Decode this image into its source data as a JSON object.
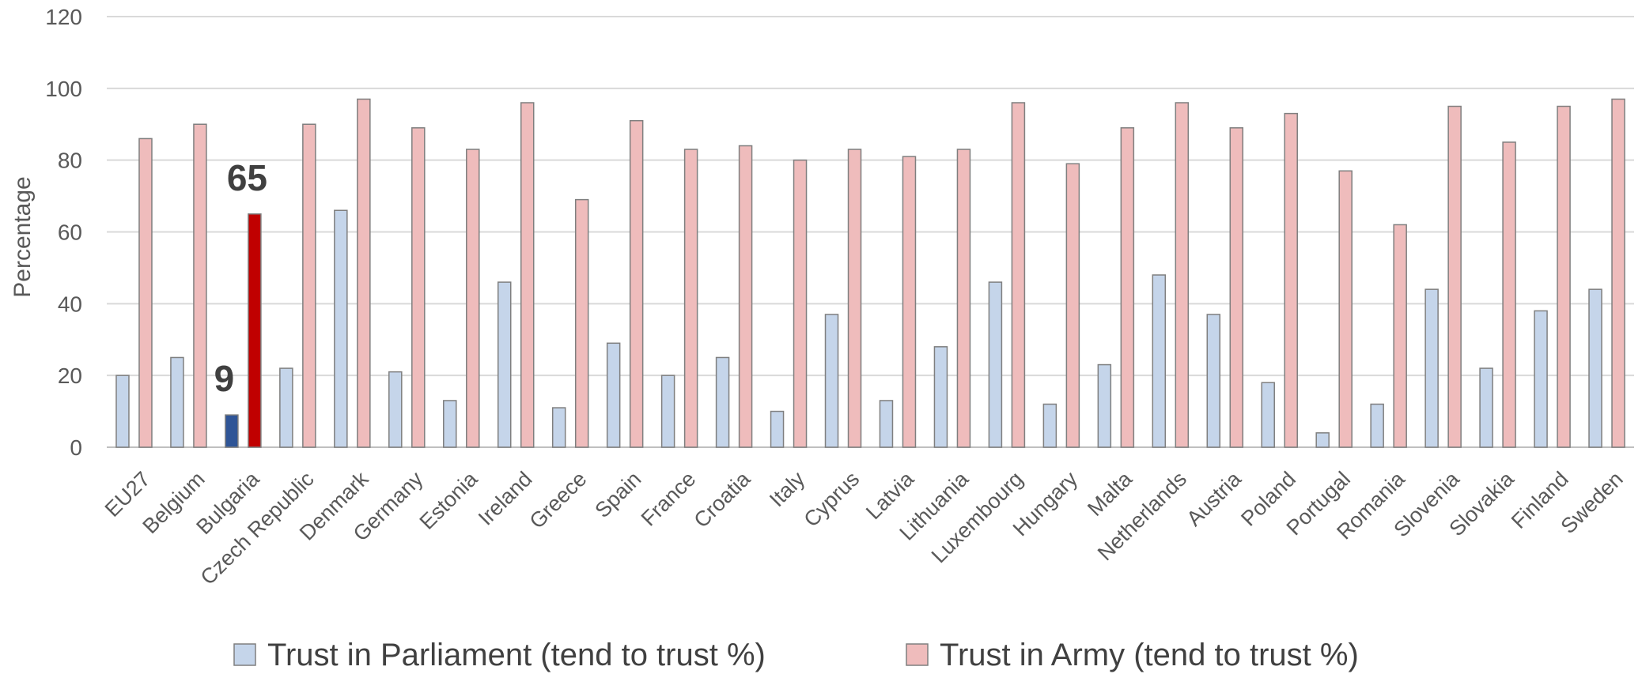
{
  "chart_data": {
    "type": "bar",
    "title": "",
    "xlabel": "",
    "ylabel": "Percentage",
    "ylim": [
      0,
      120
    ],
    "yticks": [
      0,
      20,
      40,
      60,
      80,
      100,
      120
    ],
    "grid": true,
    "legend_position": "bottom",
    "categories": [
      "EU27",
      "Belgium",
      "Bulgaria",
      "Czech Republic",
      "Denmark",
      "Germany",
      "Estonia",
      "Ireland",
      "Greece",
      "Spain",
      "France",
      "Croatia",
      "Italy",
      "Cyprus",
      "Latvia",
      "Lithuania",
      "Luxembourg",
      "Hungary",
      "Malta",
      "Netherlands",
      "Austria",
      "Poland",
      "Portugal",
      "Romania",
      "Slovenia",
      "Slovakia",
      "Finland",
      "Sweden"
    ],
    "series": [
      {
        "name": "Trust in Parliament (tend to trust %)",
        "color": "#c5d5ea",
        "values": [
          20,
          25,
          9,
          22,
          66,
          21,
          13,
          46,
          11,
          29,
          20,
          25,
          10,
          37,
          13,
          28,
          46,
          12,
          23,
          48,
          37,
          18,
          4,
          12,
          44,
          22,
          38,
          44
        ]
      },
      {
        "name": "Trust in Army (tend to trust %)",
        "color": "#efbcbc",
        "values": [
          86,
          90,
          65,
          90,
          97,
          89,
          83,
          96,
          69,
          91,
          83,
          84,
          80,
          83,
          81,
          83,
          96,
          79,
          89,
          96,
          89,
          93,
          77,
          62,
          95,
          85,
          95,
          97
        ]
      }
    ],
    "highlight": {
      "category": "Bulgaria",
      "parliament_color": "#2f5597",
      "army_color": "#c00000",
      "labels": [
        "9",
        "65"
      ]
    }
  }
}
